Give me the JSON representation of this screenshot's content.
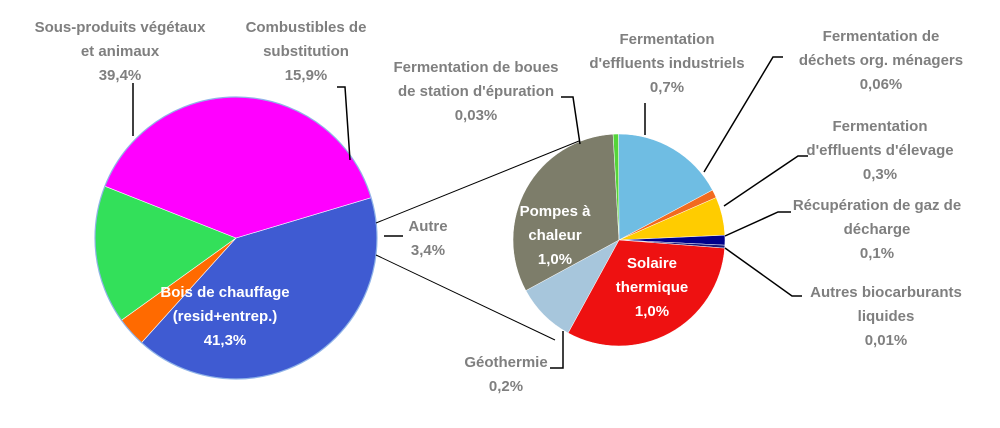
{
  "chart_data": [
    {
      "type": "pie",
      "slices": [
        {
          "lines": [
            "Bois de chauffage",
            "(resid+entrep.)",
            "41,3%"
          ],
          "value": 41.3,
          "color": "#3f5bd2"
        },
        {
          "lines": [
            "Autre",
            "3,4%"
          ],
          "value": 3.4,
          "color": "#ff6a00"
        },
        {
          "lines": [
            "Combustibles de",
            "substitution",
            "15,9%"
          ],
          "value": 15.9,
          "color": "#33e05a"
        },
        {
          "lines": [
            "Sous-produits végétaux",
            "et animaux",
            "39,4%"
          ],
          "value": 39.4,
          "color": "#ff00ff"
        }
      ]
    },
    {
      "type": "pie",
      "slices": [
        {
          "lines": [
            "Fermentation",
            "d'effluents industriels",
            "0,7%"
          ],
          "value": 0.7,
          "color": "#6fbde3"
        },
        {
          "lines": [
            "Fermentation de",
            "déchets org. ménagers",
            "0,06%"
          ],
          "value": 0.06,
          "color": "#f26a1f"
        },
        {
          "lines": [
            "Fermentation",
            "d'effluents d'élevage",
            "0,3%"
          ],
          "value": 0.3,
          "color": "#ffcc00"
        },
        {
          "lines": [
            "Récupération de gaz de",
            "décharge",
            "0,1%"
          ],
          "value": 0.1,
          "color": "#00008b"
        },
        {
          "lines": [
            "Autres biocarburants",
            "liquides",
            "0,01%"
          ],
          "value": 0.01,
          "color": "#1a1a7a"
        },
        {
          "lines": [
            "Solaire",
            "thermique",
            "1,0%"
          ],
          "value": 1.0,
          "color": "#ee1111"
        },
        {
          "lines": [
            "Géothermie",
            "0,2%"
          ],
          "value": 0.2,
          "color": "#a7c6dc"
        },
        {
          "lines": [
            "Pompes à",
            "chaleur",
            "1,0%"
          ],
          "value": 1.0,
          "color": "#7d7d6a"
        },
        {
          "lines": [
            "Fermentation de boues",
            "de station d'épuration",
            "0,03%"
          ],
          "value": 0.03,
          "color": "#55d43a"
        }
      ]
    }
  ]
}
